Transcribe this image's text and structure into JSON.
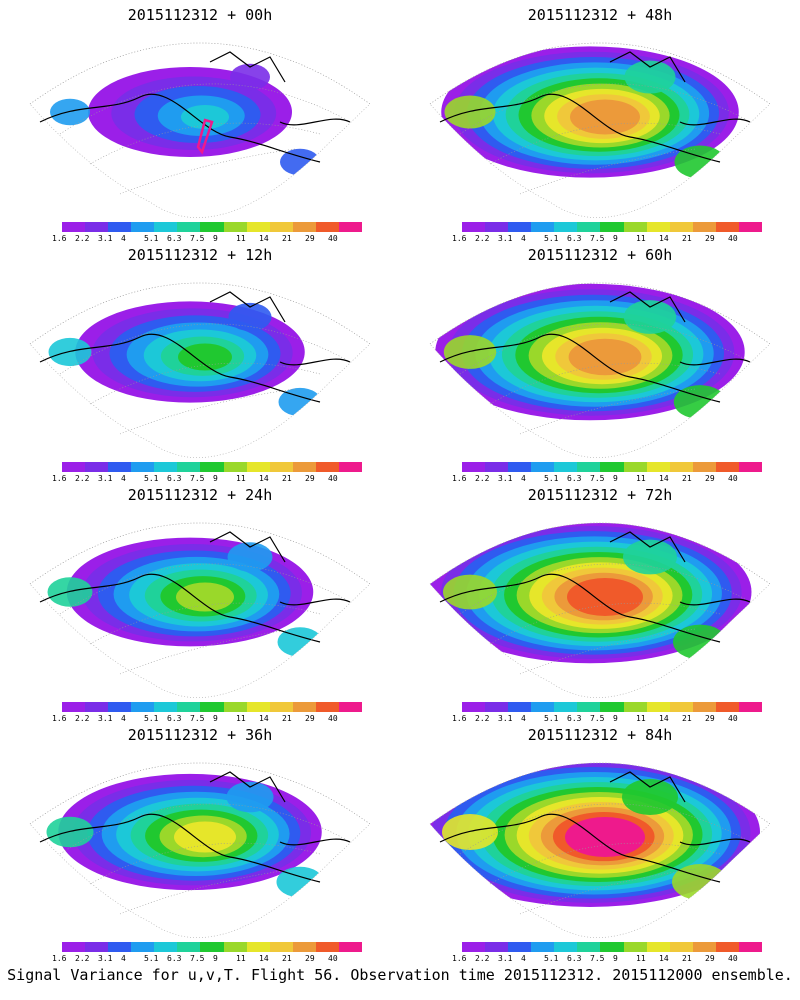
{
  "panels": [
    {
      "title": "2015112312 + 00h",
      "intensity": 0.2,
      "flight_marker": true
    },
    {
      "title": "2015112312 + 48h",
      "intensity": 0.75,
      "flight_marker": false
    },
    {
      "title": "2015112312 + 12h",
      "intensity": 0.35,
      "flight_marker": false
    },
    {
      "title": "2015112312 + 60h",
      "intensity": 0.82,
      "flight_marker": false
    },
    {
      "title": "2015112312 + 24h",
      "intensity": 0.45,
      "flight_marker": false
    },
    {
      "title": "2015112312 + 72h",
      "intensity": 0.9,
      "flight_marker": false
    },
    {
      "title": "2015112312 + 36h",
      "intensity": 0.55,
      "flight_marker": false
    },
    {
      "title": "2015112312 + 84h",
      "intensity": 1.0,
      "flight_marker": false
    }
  ],
  "colorbar": {
    "labels": [
      "1.6",
      "2.2",
      "3.1",
      "4",
      "5.1",
      "6.3",
      "7.5",
      "9",
      "11",
      "14",
      "21",
      "29",
      "40"
    ],
    "colors": [
      "#9b1fe8",
      "#7a2de8",
      "#2f5bf0",
      "#1f9cf0",
      "#1cc8d8",
      "#1fd29a",
      "#20c830",
      "#9ad82a",
      "#e6e62a",
      "#f0c83a",
      "#ec9a3a",
      "#f05a2a",
      "#ee1a8c"
    ]
  },
  "footer": "Signal Variance for u,v,T. Flight 56. Observation time 2015112312. 2015112000 ensemble."
}
